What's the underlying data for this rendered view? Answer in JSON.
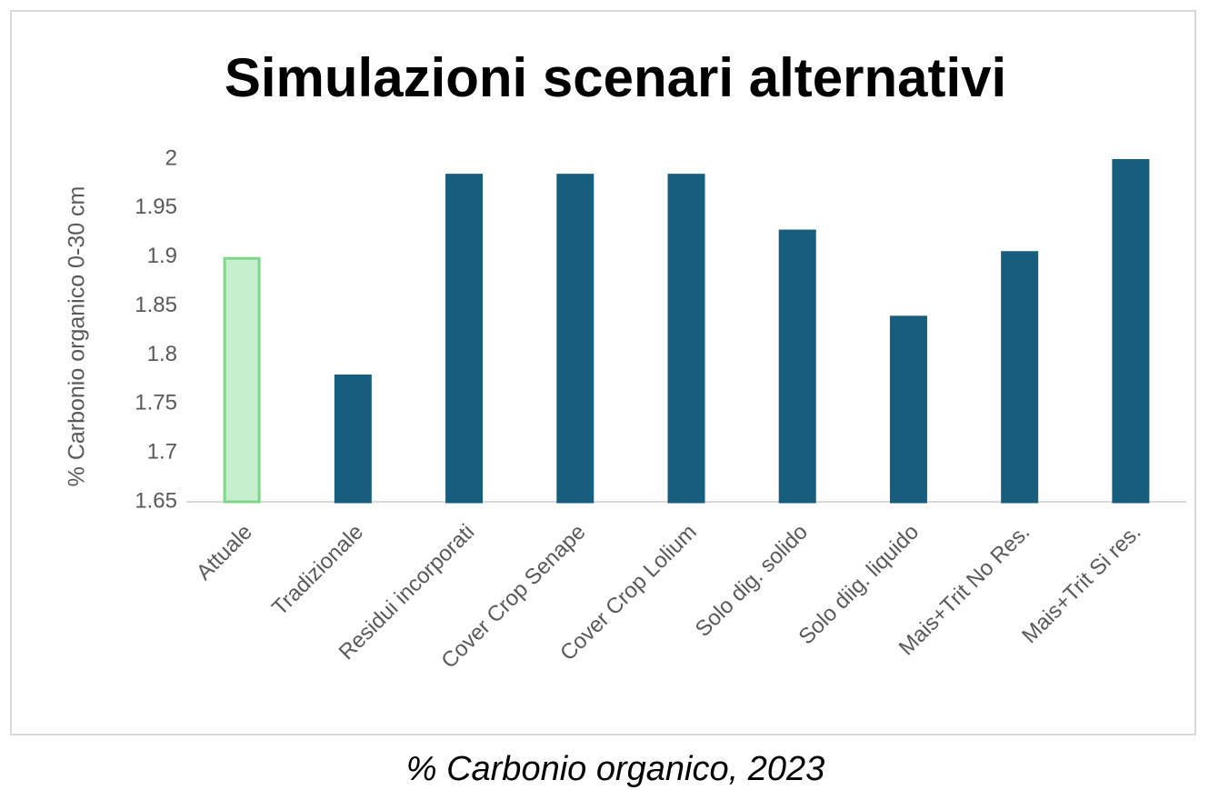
{
  "chart_data": {
    "type": "bar",
    "title": "Simulazioni scenari alternativi",
    "ylabel": "% Carbonio organico 0-30 cm",
    "caption": "% Carbonio organico, 2023",
    "categories": [
      "Attuale",
      "Tradizionale",
      "Residui incorporati",
      "Cover Crop Senape",
      "Cover Crop Lolium",
      "Solo dig. solido",
      "Solo diig. liquido",
      "Mais+Trit No Res.",
      "Mais+Trit Si res."
    ],
    "values": [
      1.9,
      1.78,
      1.985,
      1.985,
      1.985,
      1.928,
      1.84,
      1.906,
      2.0
    ],
    "colors": [
      "#c6efce",
      "#175e7e",
      "#175e7e",
      "#175e7e",
      "#175e7e",
      "#175e7e",
      "#175e7e",
      "#175e7e",
      "#175e7e"
    ],
    "edgecolors": [
      "#7fd58a",
      "#175e7e",
      "#175e7e",
      "#175e7e",
      "#175e7e",
      "#175e7e",
      "#175e7e",
      "#175e7e",
      "#175e7e"
    ],
    "ylim": [
      1.65,
      2.0
    ],
    "yticks": [
      1.65,
      1.7,
      1.75,
      1.8,
      1.85,
      1.9,
      1.95,
      2
    ],
    "grid": false
  }
}
